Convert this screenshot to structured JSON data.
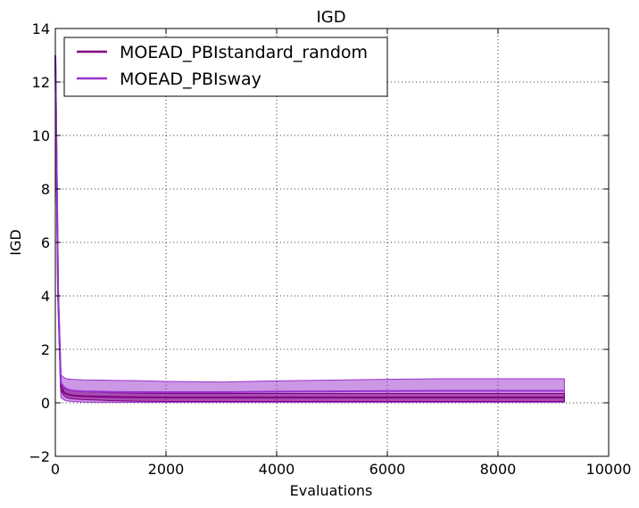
{
  "chart_data": {
    "type": "line",
    "title": "IGD",
    "xlabel": "Evaluations",
    "ylabel": "IGD",
    "xlim": [
      0,
      10000
    ],
    "ylim": [
      -2,
      14
    ],
    "x_ticks": [
      0,
      2000,
      4000,
      6000,
      8000,
      10000
    ],
    "y_ticks": [
      -2,
      0,
      2,
      4,
      6,
      8,
      10,
      12,
      14
    ],
    "x_tick_labels": [
      "0",
      "2000",
      "4000",
      "6000",
      "8000",
      "10000"
    ],
    "y_tick_labels": [
      "−2",
      "0",
      "2",
      "4",
      "6",
      "8",
      "10",
      "12",
      "14"
    ],
    "grid": true,
    "legend_position": "top-left",
    "series": [
      {
        "name": "MOEAD_PBIstandard_random",
        "color": "#800080",
        "x": [
          0,
          50,
          100,
          150,
          200,
          300,
          500,
          800,
          1000,
          1500,
          2000,
          3000,
          4000,
          5000,
          6000,
          7000,
          8000,
          9200
        ],
        "y": [
          13.0,
          4.0,
          0.6,
          0.4,
          0.33,
          0.28,
          0.25,
          0.23,
          0.22,
          0.21,
          0.2,
          0.2,
          0.2,
          0.2,
          0.2,
          0.2,
          0.2,
          0.2
        ],
        "upper": [
          13.0,
          4.2,
          0.75,
          0.55,
          0.5,
          0.45,
          0.42,
          0.4,
          0.38,
          0.36,
          0.35,
          0.35,
          0.35,
          0.35,
          0.35,
          0.35,
          0.35,
          0.35
        ],
        "lower": [
          13.0,
          3.8,
          0.45,
          0.28,
          0.2,
          0.15,
          0.12,
          0.1,
          0.08,
          0.06,
          0.05,
          0.05,
          0.05,
          0.05,
          0.05,
          0.05,
          0.05,
          0.05
        ]
      },
      {
        "name": "MOEAD_PBIsway",
        "color": "#9932CC",
        "x": [
          0,
          50,
          100,
          150,
          200,
          300,
          500,
          800,
          1000,
          1500,
          2000,
          3000,
          4000,
          5000,
          6000,
          7000,
          8000,
          9200
        ],
        "y": [
          13.0,
          4.2,
          0.75,
          0.6,
          0.52,
          0.46,
          0.43,
          0.42,
          0.41,
          0.4,
          0.4,
          0.4,
          0.42,
          0.43,
          0.44,
          0.45,
          0.45,
          0.45
        ],
        "upper": [
          13.0,
          4.5,
          1.05,
          0.95,
          0.9,
          0.88,
          0.86,
          0.85,
          0.84,
          0.83,
          0.8,
          0.78,
          0.82,
          0.85,
          0.88,
          0.9,
          0.9,
          0.9
        ],
        "lower": [
          13.0,
          3.9,
          0.2,
          0.12,
          0.08,
          0.05,
          0.03,
          0.02,
          0.02,
          0.02,
          0.02,
          0.02,
          0.02,
          0.02,
          0.02,
          0.02,
          0.02,
          0.02
        ]
      }
    ]
  }
}
